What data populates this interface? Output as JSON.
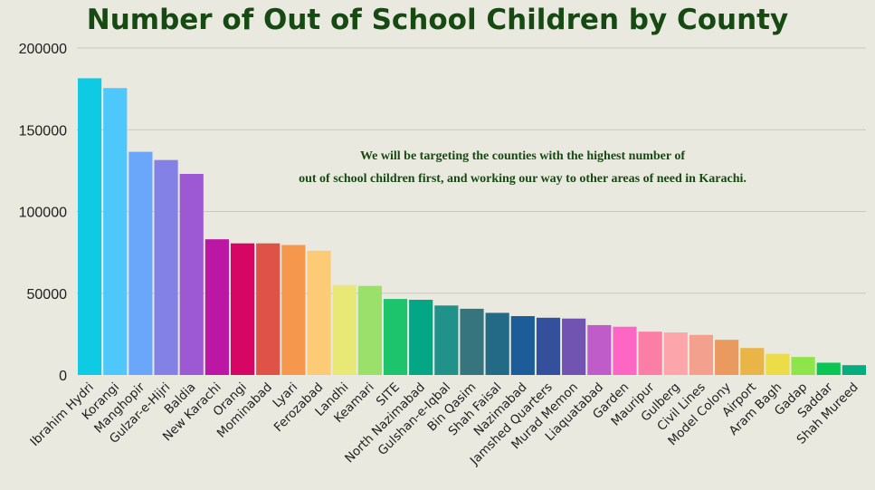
{
  "chart_data": {
    "type": "bar",
    "title": "Number of Out of School Children by County",
    "annotation": [
      "We will be targeting the counties with the highest number of",
      "out of school children first, and working our way to other areas of need in Karachi."
    ],
    "xlabel": "",
    "ylabel": "",
    "ylim": [
      0,
      200000
    ],
    "yticks": [
      0,
      50000,
      100000,
      150000,
      200000
    ],
    "grid": true,
    "categories": [
      "Ibrahim Hydri",
      "Korangi",
      "Manghopir",
      "Gulzar-e-Hijri",
      "Baldia",
      "New Karachi",
      "Orangi",
      "Mominabad",
      "Lyari",
      "Ferozabad",
      "Landhi",
      "Keamari",
      "SITE",
      "North Nazimabad",
      "Gulshan-e-Iqbal",
      "Bin Qasim",
      "Shah Faisal",
      "Nazimabad",
      "Jamshed Quarters",
      "Murad Memon",
      "Liaquatabad",
      "Garden",
      "Mauripur",
      "Gulberg",
      "Civil Lines",
      "Model Colony",
      "Airport",
      "Aram Bagh",
      "Gadap",
      "Saddar",
      "Shah Mureed"
    ],
    "values": [
      181500,
      175500,
      136500,
      131500,
      123000,
      83000,
      80500,
      80500,
      79500,
      76000,
      55000,
      54500,
      46500,
      46000,
      42500,
      40500,
      38000,
      36000,
      35000,
      34500,
      30500,
      29500,
      26500,
      26000,
      24500,
      21500,
      16500,
      13000,
      11000,
      7500,
      6000
    ],
    "colors": [
      "#0ecbe3",
      "#4ec8fb",
      "#6aa7fb",
      "#8481e6",
      "#9d59d3",
      "#bc17a4",
      "#d50664",
      "#df5247",
      "#f6974e",
      "#fdca76",
      "#e8e876",
      "#9be06b",
      "#1ec46c",
      "#03a685",
      "#219289",
      "#36757d",
      "#226a86",
      "#1c5c98",
      "#344f9b",
      "#7153b2",
      "#c05bca",
      "#fd66c5",
      "#fb7ea6",
      "#fca6ab",
      "#f3a08f",
      "#eb9a5f",
      "#e8b546",
      "#ecdc47",
      "#8ee44b",
      "#08c554",
      "#04ad7d"
    ],
    "legend": "none"
  }
}
